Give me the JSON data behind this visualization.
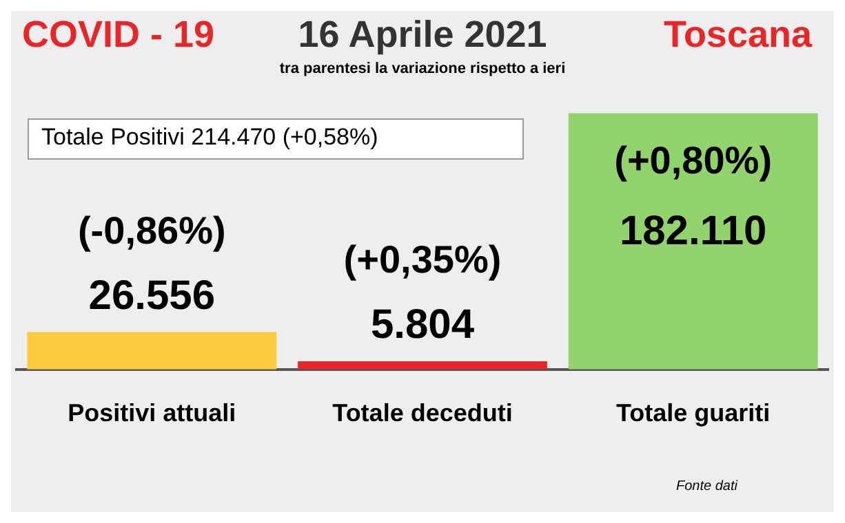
{
  "chart_data": {
    "type": "bar",
    "title": "16 Aprile 2021",
    "subtitle": "tra parentesi la variazione rispetto a ieri",
    "categories": [
      "Positivi attuali",
      "Totale deceduti",
      "Totale guariti"
    ],
    "values": [
      26556,
      5804,
      182110
    ],
    "colors": [
      "#fdcd3f",
      "#e8262a",
      "#92d36e"
    ],
    "value_labels": [
      "26.556",
      "5.804",
      "182.110"
    ],
    "tick_labels": "x",
    "grid": false,
    "legend": false,
    "annotations": [
      "COVID - 19",
      "Toscana",
      "Totale Positivi 214.470 (+0,58%)",
      "(-0,86%)",
      "(+0,35%)",
      "(+0,80%)",
      "Fonte dati"
    ]
  }
}
